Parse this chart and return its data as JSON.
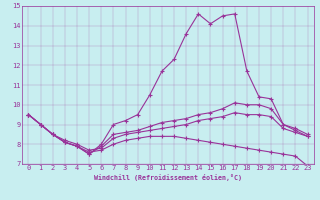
{
  "xlabel": "Windchill (Refroidissement éolien,°C)",
  "ylabel": "",
  "bg_color": "#c8eef0",
  "line_color": "#993399",
  "xlim": [
    -0.5,
    23.5
  ],
  "ylim": [
    7,
    15
  ],
  "xticks": [
    0,
    1,
    2,
    3,
    4,
    5,
    6,
    7,
    8,
    9,
    10,
    11,
    12,
    13,
    14,
    15,
    16,
    17,
    18,
    19,
    20,
    21,
    22,
    23
  ],
  "yticks": [
    7,
    8,
    9,
    10,
    11,
    12,
    13,
    14,
    15
  ],
  "line1_x": [
    0,
    1,
    2,
    3,
    4,
    5,
    6,
    7,
    8,
    9,
    10,
    11,
    12,
    13,
    14,
    15,
    16,
    17,
    18,
    19,
    20,
    21,
    22,
    23
  ],
  "line1_y": [
    9.5,
    9.0,
    8.5,
    8.1,
    7.9,
    7.5,
    8.0,
    9.0,
    9.2,
    9.5,
    10.5,
    11.7,
    12.3,
    13.6,
    14.6,
    14.1,
    14.5,
    14.6,
    11.7,
    10.4,
    10.3,
    9.0,
    8.7,
    8.4
  ],
  "line2_x": [
    0,
    1,
    2,
    3,
    4,
    5,
    6,
    7,
    8,
    9,
    10,
    11,
    12,
    13,
    14,
    15,
    16,
    17,
    18,
    19,
    20,
    21,
    22,
    23
  ],
  "line2_y": [
    9.5,
    9.0,
    8.5,
    8.1,
    7.9,
    7.5,
    7.9,
    8.5,
    8.6,
    8.7,
    8.9,
    9.1,
    9.2,
    9.3,
    9.5,
    9.6,
    9.8,
    10.1,
    10.0,
    10.0,
    9.8,
    9.0,
    8.8,
    8.5
  ],
  "line3_x": [
    0,
    1,
    2,
    3,
    4,
    5,
    6,
    7,
    8,
    9,
    10,
    11,
    12,
    13,
    14,
    15,
    16,
    17,
    18,
    19,
    20,
    21,
    22,
    23
  ],
  "line3_y": [
    9.5,
    9.0,
    8.5,
    8.2,
    8.0,
    7.7,
    7.8,
    8.3,
    8.5,
    8.6,
    8.7,
    8.8,
    8.9,
    9.0,
    9.2,
    9.3,
    9.4,
    9.6,
    9.5,
    9.5,
    9.4,
    8.8,
    8.6,
    8.4
  ],
  "line4_x": [
    0,
    1,
    2,
    3,
    4,
    5,
    6,
    7,
    8,
    9,
    10,
    11,
    12,
    13,
    14,
    15,
    16,
    17,
    18,
    19,
    20,
    21,
    22,
    23
  ],
  "line4_y": [
    9.5,
    9.0,
    8.5,
    8.1,
    7.9,
    7.6,
    7.7,
    8.0,
    8.2,
    8.3,
    8.4,
    8.4,
    8.4,
    8.3,
    8.2,
    8.1,
    8.0,
    7.9,
    7.8,
    7.7,
    7.6,
    7.5,
    7.4,
    6.9
  ],
  "tick_fontsize": 5.0,
  "xlabel_fontsize": 4.8
}
